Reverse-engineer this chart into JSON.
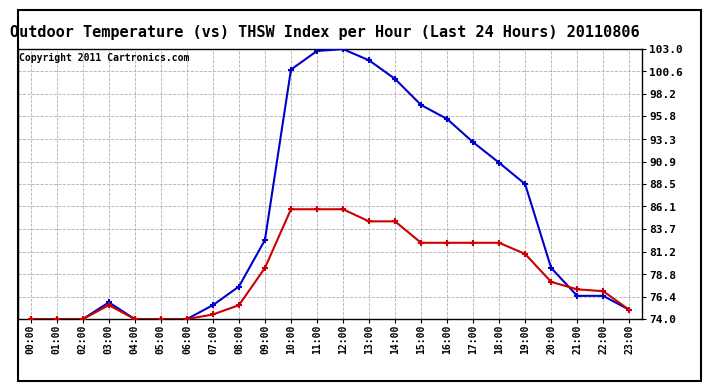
{
  "title": "Outdoor Temperature (vs) THSW Index per Hour (Last 24 Hours) 20110806",
  "copyright": "Copyright 2011 Cartronics.com",
  "hours": [
    "00:00",
    "01:00",
    "02:00",
    "03:00",
    "04:00",
    "05:00",
    "06:00",
    "07:00",
    "08:00",
    "09:00",
    "10:00",
    "11:00",
    "12:00",
    "13:00",
    "14:00",
    "15:00",
    "16:00",
    "17:00",
    "18:00",
    "19:00",
    "20:00",
    "21:00",
    "22:00",
    "23:00"
  ],
  "outdoor_temp": [
    74.0,
    74.0,
    74.0,
    75.5,
    74.0,
    74.0,
    74.0,
    74.5,
    75.5,
    79.5,
    85.8,
    85.8,
    85.8,
    84.5,
    84.5,
    82.2,
    82.2,
    82.2,
    82.2,
    81.0,
    78.0,
    77.2,
    77.0,
    75.0
  ],
  "thsw_index": [
    74.0,
    74.0,
    74.0,
    75.8,
    74.0,
    74.0,
    74.0,
    75.5,
    77.5,
    82.5,
    100.8,
    102.8,
    103.0,
    101.8,
    99.8,
    97.0,
    95.5,
    93.0,
    90.8,
    88.5,
    79.5,
    76.5,
    76.5,
    75.0
  ],
  "y_min": 74.0,
  "y_max": 103.0,
  "y_ticks": [
    74.0,
    76.4,
    78.8,
    81.2,
    83.7,
    86.1,
    88.5,
    90.9,
    93.3,
    95.8,
    98.2,
    100.6,
    103.0
  ],
  "temp_color": "#cc0000",
  "thsw_color": "#0000cc",
  "bg_color": "#ffffff",
  "plot_bg_color": "#ffffff",
  "grid_color": "#b0b0b0",
  "title_fontsize": 11,
  "copyright_fontsize": 7
}
